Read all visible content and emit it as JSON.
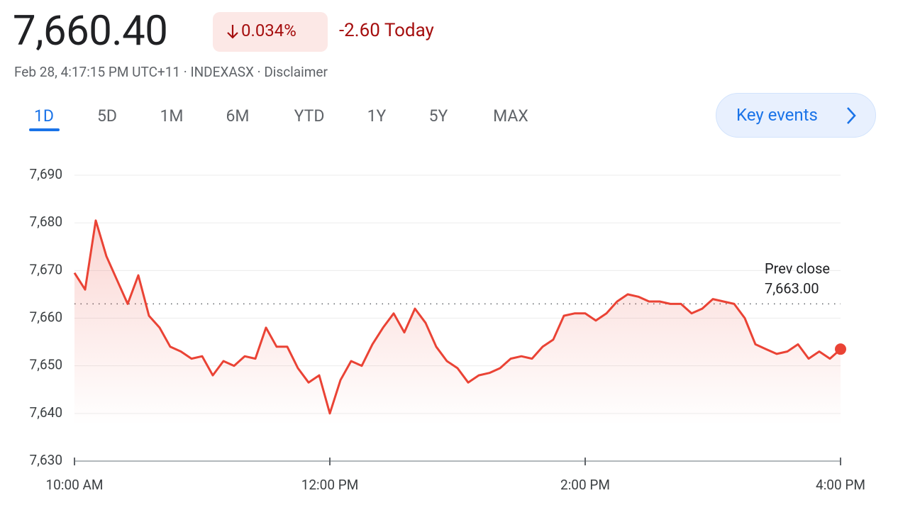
{
  "header": {
    "price": "7,660.40",
    "change_percent": "0.034%",
    "change_today": "-2.60 Today",
    "meta": "Feb 28, 4:17:15 PM UTC+11 · INDEXASX · Disclaimer"
  },
  "tabs": [
    "1D",
    "5D",
    "1M",
    "6M",
    "YTD",
    "1Y",
    "5Y",
    "MAX"
  ],
  "key_events": "Key events",
  "chart_data": {
    "type": "line",
    "categories": [
      "10:00 AM",
      null,
      null,
      null,
      null,
      null,
      null,
      null,
      null,
      null,
      null,
      null,
      null,
      null,
      null,
      null,
      null,
      null,
      null,
      null,
      null,
      null,
      null,
      null,
      "12:00 PM",
      null,
      null,
      null,
      null,
      null,
      null,
      null,
      null,
      null,
      null,
      null,
      null,
      null,
      null,
      null,
      null,
      null,
      null,
      null,
      null,
      null,
      null,
      null,
      "2:00 PM",
      null,
      null,
      null,
      null,
      null,
      null,
      null,
      null,
      null,
      null,
      null,
      null,
      null,
      null,
      null,
      null,
      null,
      null,
      null,
      null,
      null,
      null,
      null,
      "4:00 PM"
    ],
    "series": [
      {
        "color": "#ea4335",
        "values": [
          7669.5,
          7666,
          7680.5,
          7673,
          7668,
          7663,
          7669,
          7660.5,
          7658,
          7654,
          7653,
          7651.5,
          7652,
          7648,
          7651,
          7650,
          7652,
          7651.5,
          7658,
          7654,
          7654,
          7649.5,
          7646.5,
          7648,
          7640,
          7647,
          7651,
          7650,
          7654.5,
          7658,
          7661,
          7657,
          7662,
          7659,
          7654,
          7651,
          7649.5,
          7646.5,
          7648,
          7648.5,
          7649.5,
          7651.5,
          7652,
          7651.5,
          7654,
          7655.5,
          7660.5,
          7661,
          7661,
          7659.5,
          7661,
          7663.5,
          7665,
          7664.5,
          7663.5,
          7663.5,
          7663,
          7663,
          7661,
          7662,
          7664,
          7663.5,
          7663,
          7660,
          7654.5,
          7653.5,
          7652.5,
          7653,
          7654.5,
          7651.5,
          7653,
          7651.5,
          7653.5
        ]
      }
    ],
    "ylim": [
      7630,
      7690
    ],
    "yticks": [
      {
        "value": 7630,
        "label": "7,630"
      },
      {
        "value": 7640,
        "label": "7,640"
      },
      {
        "value": 7650,
        "label": "7,650"
      },
      {
        "value": 7660,
        "label": "7,660"
      },
      {
        "value": 7670,
        "label": "7,670"
      },
      {
        "value": 7680,
        "label": "7,680"
      },
      {
        "value": 7690,
        "label": "7,690"
      }
    ],
    "grid": true,
    "prev_close": {
      "label": "Prev close",
      "value": 7663,
      "value_label": "7,663.00"
    }
  }
}
